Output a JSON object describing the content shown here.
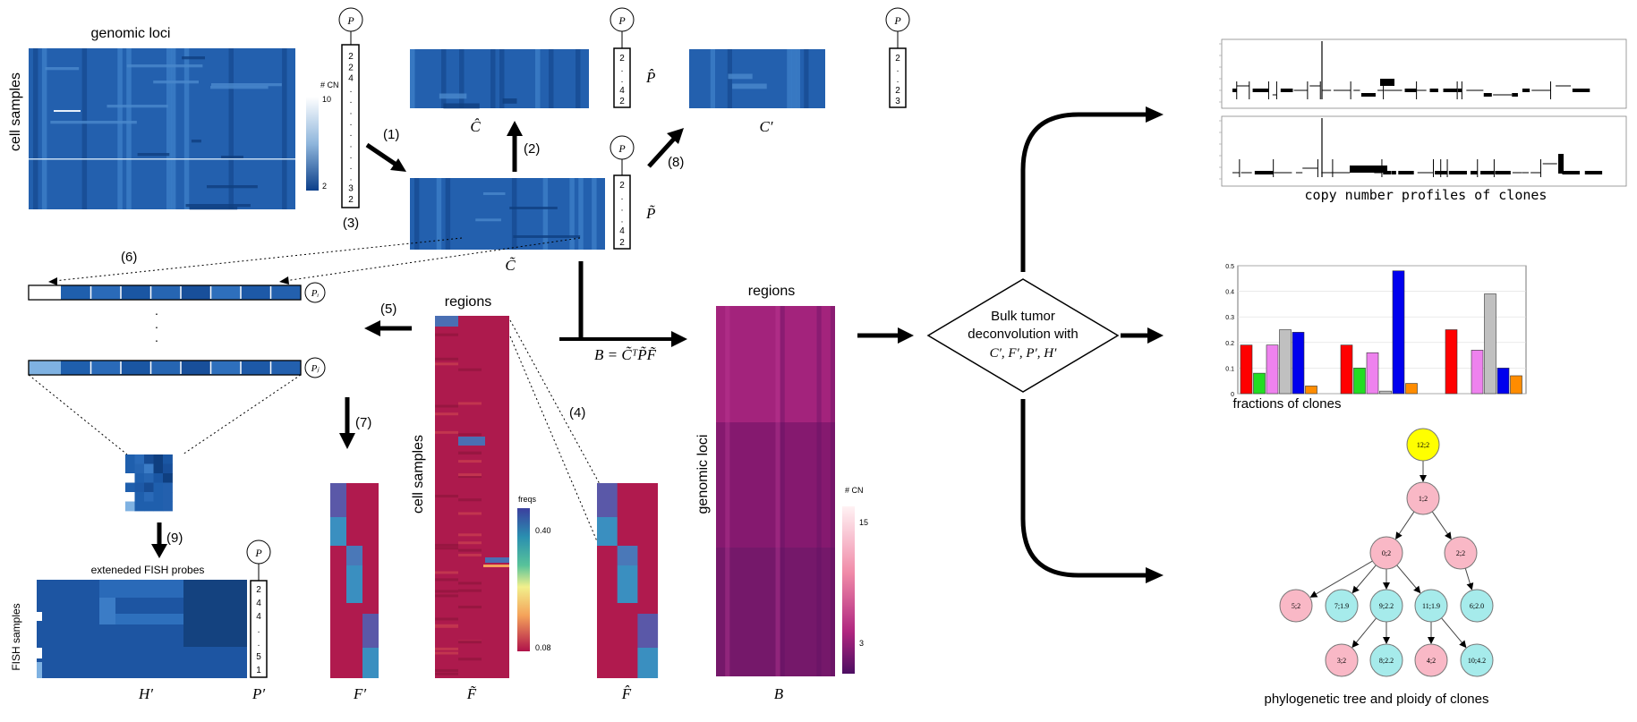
{
  "labels": {
    "genomic_loci_top": "genomic loci",
    "cell_samples_left": "cell samples",
    "cn_scale_title": "# CN",
    "cn_scale_max": "10",
    "cn_scale_min": "2",
    "regions_mid": "regions",
    "cell_samples_mid": "cell samples",
    "freqs_title": "freqs",
    "freqs_max": "0.40",
    "freqs_min": "0.08",
    "regions_right": "regions",
    "genomic_loci_right": "genomic loci",
    "bcn_title": "# CN",
    "bcn_max": "15",
    "bcn_min": "3",
    "fish_title": "exteneded FISH probes",
    "fish_samples": "FISH samples",
    "copy_number_caption": "copy number profiles of clones",
    "fractions_caption": "fractions of clones",
    "tree_caption": "phylogenetic tree and ploidy of clones"
  },
  "math": {
    "C_hat": "Ĉ",
    "C_prime": "C′",
    "C_tilde": "C̃",
    "P_hat": "P̂",
    "P_tilde": "P̃",
    "P_prime": "P′",
    "H_prime": "H′",
    "F_prime": "F′",
    "F_tilde": "F̃",
    "F_hat": "F̂",
    "B": "B",
    "formula": "B = C̃ᵀP̃F̃",
    "P_node": "P",
    "P_i": "Pᵢ",
    "P_j": "Pⱼ"
  },
  "steps": {
    "s1": "(1)",
    "s2": "(2)",
    "s3": "(3)",
    "s4": "(4)",
    "s5": "(5)",
    "s6": "(6)",
    "s7": "(7)",
    "s8": "(8)",
    "s9": "(9)"
  },
  "ploidy_vectors": {
    "main": [
      "2",
      "2",
      "4",
      ".",
      ".",
      ".",
      ".",
      ".",
      ".",
      ".",
      ".",
      ".",
      "3",
      "2"
    ],
    "p_hat": [
      "2",
      ".",
      ".",
      "4",
      "2"
    ],
    "p_prime_top": [
      "2",
      ".",
      ".",
      "2",
      "3"
    ],
    "p_tilde": [
      "2",
      ".",
      ".",
      ".",
      "4",
      "2"
    ],
    "p_prime_fish": [
      "2",
      "4",
      "4",
      ".",
      ".",
      "5",
      "1"
    ]
  },
  "ellipsis": "·",
  "decision": {
    "line1": "Bulk tumor",
    "line2": "deconvolution with",
    "line3": "C′, F′, P′, H′"
  },
  "chart_data": {
    "type": "bar",
    "title": "",
    "ylim": [
      0,
      0.5
    ],
    "yticks": [
      "0",
      "0.1",
      "0.2",
      "0.3",
      "0.4",
      "0.5"
    ],
    "groups": [
      {
        "bars": [
          {
            "value": 0.19,
            "color": "#ff0000"
          },
          {
            "value": 0.08,
            "color": "#22dd22"
          },
          {
            "value": 0.19,
            "color": "#ee82ee"
          },
          {
            "value": 0.25,
            "color": "#c0c0c0"
          },
          {
            "value": 0.24,
            "color": "#0000ee"
          },
          {
            "value": 0.03,
            "color": "#ff8c00"
          }
        ]
      },
      {
        "bars": [
          {
            "value": 0.19,
            "color": "#ff0000"
          },
          {
            "value": 0.1,
            "color": "#22dd22"
          },
          {
            "value": 0.16,
            "color": "#ee82ee"
          },
          {
            "value": 0.01,
            "color": "#c0c0c0"
          },
          {
            "value": 0.48,
            "color": "#0000ee"
          },
          {
            "value": 0.04,
            "color": "#ff8c00"
          }
        ]
      },
      {
        "bars": [
          {
            "value": 0.25,
            "color": "#ff0000"
          },
          {
            "value": 0.0,
            "color": "#22dd22"
          },
          {
            "value": 0.17,
            "color": "#ee82ee"
          },
          {
            "value": 0.39,
            "color": "#c0c0c0"
          },
          {
            "value": 0.1,
            "color": "#0000ee"
          },
          {
            "value": 0.07,
            "color": "#ff8c00"
          }
        ]
      }
    ]
  },
  "tree": {
    "nodes": [
      {
        "id": "n12",
        "label": "12;2",
        "color": "#ffff00"
      },
      {
        "id": "n1",
        "label": "1;2",
        "color": "#f9b8c6"
      },
      {
        "id": "n0",
        "label": "0;2",
        "color": "#f9b8c6"
      },
      {
        "id": "n2",
        "label": "2;2",
        "color": "#f9b8c6"
      },
      {
        "id": "n5",
        "label": "5;2",
        "color": "#f9b8c6"
      },
      {
        "id": "n7",
        "label": "7;1.9",
        "color": "#a6ebeb"
      },
      {
        "id": "n9",
        "label": "9;2.2",
        "color": "#a6ebeb"
      },
      {
        "id": "n11",
        "label": "11;1.9",
        "color": "#a6ebeb"
      },
      {
        "id": "n6",
        "label": "6;2.0",
        "color": "#a6ebeb"
      },
      {
        "id": "n3",
        "label": "3;2",
        "color": "#f9b8c6"
      },
      {
        "id": "n8",
        "label": "8;2.2",
        "color": "#a6ebeb"
      },
      {
        "id": "n4",
        "label": "4;2",
        "color": "#f9b8c6"
      },
      {
        "id": "n10",
        "label": "10;4.2",
        "color": "#a6ebeb"
      }
    ]
  },
  "colors": {
    "heat_blue": "#1f5fad",
    "heat_blue_dark": "#123e82",
    "heat_blue_light": "#4e8fd0",
    "crimson": "#b01a4e",
    "magenta_dark": "#7a1a6e",
    "magenta": "#a8237c"
  }
}
